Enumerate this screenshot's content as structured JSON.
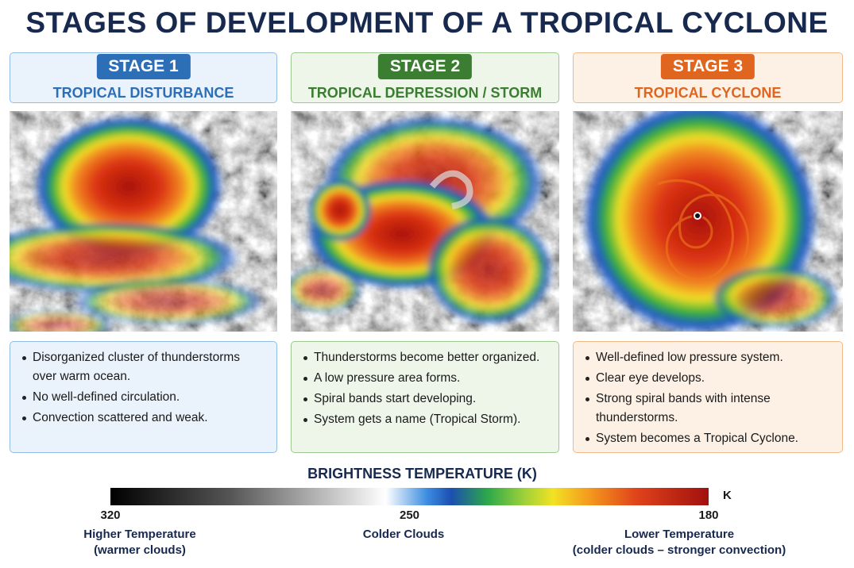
{
  "title": "STAGES OF DEVELOPMENT OF A TROPICAL CYCLONE",
  "stages": [
    {
      "badge": "STAGE 1",
      "name": "TROPICAL DISTURBANCE",
      "bullets": [
        "Disorganized cluster of thunderstorms over warm ocean.",
        "No well-defined circulation.",
        "Convection scattered and weak."
      ]
    },
    {
      "badge": "STAGE 2",
      "name": "TROPICAL DEPRESSION / STORM",
      "bullets": [
        "Thunderstorms become better organized.",
        "A low pressure area forms.",
        "Spiral bands start developing.",
        "System gets a name (Tropical Storm)."
      ]
    },
    {
      "badge": "STAGE 3",
      "name": "TROPICAL CYCLONE",
      "bullets": [
        "Well-defined low pressure system.",
        "Clear eye develops.",
        "Strong spiral bands with intense thunderstorms.",
        "System becomes a Tropical Cyclone."
      ]
    }
  ],
  "colorbar": {
    "title": "BRIGHTNESS TEMPERATURE (K)",
    "unit": "K",
    "ticks": [
      320,
      250,
      180
    ],
    "labels": [
      {
        "title": "Higher Temperature",
        "note": "(warmer clouds)"
      },
      {
        "title": "Colder Clouds"
      },
      {
        "title": "Lower Temperature",
        "note": "(colder clouds – stronger convection)"
      }
    ]
  }
}
